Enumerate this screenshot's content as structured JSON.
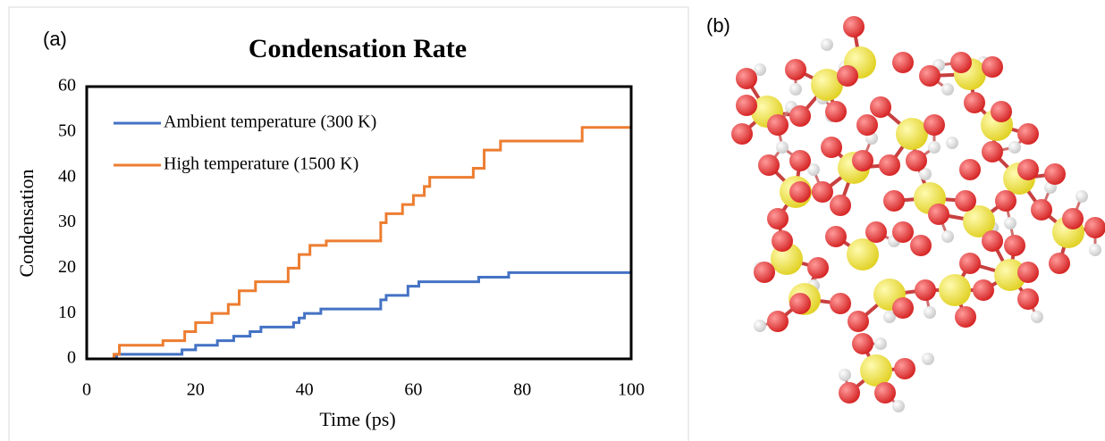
{
  "chart_data": {
    "type": "line",
    "step": "post",
    "title": "Condensation Rate",
    "annotation": "(a)",
    "x_label": "Time (ps)",
    "y_label": "Condensation",
    "xlim": [
      0,
      100
    ],
    "xticks": [
      0,
      20,
      40,
      60,
      80,
      100
    ],
    "ylim": [
      0,
      60
    ],
    "yticks": [
      0,
      10,
      20,
      30,
      40,
      50,
      60
    ],
    "legend": "top-left",
    "grid": false,
    "series": [
      {
        "name": "Ambient temperature (300 K)",
        "color": "#4472c4",
        "x": [
          0,
          5.5,
          17.5,
          20,
          24,
          27,
          30,
          32,
          38,
          39,
          40,
          43,
          54,
          55,
          59,
          61,
          72,
          77.5,
          100
        ],
        "values": [
          0,
          1,
          2,
          3,
          4,
          5,
          6,
          7,
          8,
          9,
          10,
          11,
          13,
          14,
          16,
          17,
          18,
          19,
          19
        ]
      },
      {
        "name": "High temperature (1500 K)",
        "color": "#ed7d31",
        "x": [
          0,
          5,
          6,
          14,
          18,
          20,
          23,
          26,
          28,
          31,
          37,
          39,
          41,
          44,
          54,
          55,
          58,
          60,
          62,
          63,
          71,
          73,
          76,
          91,
          100
        ],
        "values": [
          0,
          1,
          3,
          4,
          6,
          8,
          10,
          12,
          15,
          17,
          20,
          23,
          25,
          26,
          30,
          32,
          34,
          36,
          38,
          40,
          42,
          46,
          48,
          51,
          51
        ]
      }
    ]
  },
  "figure_b": {
    "label": "(b)"
  }
}
